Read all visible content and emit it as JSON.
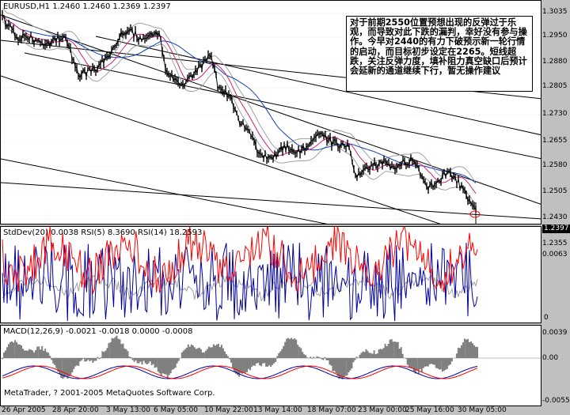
{
  "main": {
    "header": "EURUSD,H1  1.2460 1.2460 1.2369 1.2397",
    "comment": "对于前期2550位置预想出现的反弹过于乐观，而导致对此下跌的漏判，幸好没有参与操作。今早对2440的有力下破预示新一轮行情的启动，而目标初步设定在2265。短线超跌，关注反弹力度，填补阻力真空缺口后预计会延新的通道继续下行，暂无操作建议",
    "price_ticks": [
      "1.3035",
      "1.2950",
      "1.2880",
      "1.2805",
      "1.2730",
      "1.2655",
      "1.2580",
      "1.2505",
      "1.2430",
      "1.2355"
    ],
    "current_price": "1.2397"
  },
  "stddev": {
    "header": "StdDev(20) 0.0038  RSI(5) 8.3690  RSI(14) 18.2593",
    "ticks": [
      "0.0063",
      "0"
    ]
  },
  "macd": {
    "header": "MACD(12,26,9) -0.0021 -0.0018 0.0000 -0.0008",
    "ticks": [
      "0.0039",
      "0.00",
      "-0.0055"
    ],
    "copyright": "MetaTrader, ? 2001-2005 MetaQuotes Software Corp."
  },
  "time_labels": [
    "26 Apr 2005",
    "28 Apr 20:00",
    "3 May 13:00",
    "6 May 05:00",
    "10 May 22:00",
    "13 May 14:00",
    "18 May 07:00",
    "23 May 00:00",
    "25 May 16:00",
    "30 May 05:00"
  ],
  "colors": {
    "price": "#000000",
    "ma_fast": "#d02070",
    "ma_slow": "#1040c0",
    "bands": "#a0a0a0",
    "rsi5": "#0000a0",
    "rsi14": "#ff0000",
    "signal": "#ff0000",
    "macd_hist": "#808080",
    "marker": "#ff0000"
  }
}
